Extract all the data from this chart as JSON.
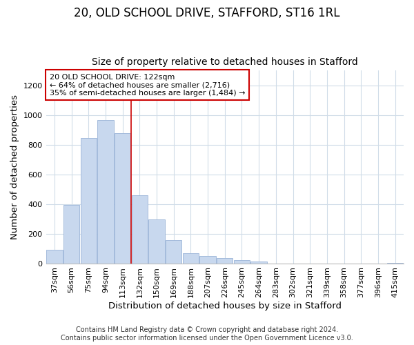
{
  "title1": "20, OLD SCHOOL DRIVE, STAFFORD, ST16 1RL",
  "title2": "Size of property relative to detached houses in Stafford",
  "xlabel": "Distribution of detached houses by size in Stafford",
  "ylabel": "Number of detached properties",
  "categories": [
    "37sqm",
    "56sqm",
    "75sqm",
    "94sqm",
    "113sqm",
    "132sqm",
    "150sqm",
    "169sqm",
    "188sqm",
    "207sqm",
    "226sqm",
    "245sqm",
    "264sqm",
    "283sqm",
    "302sqm",
    "321sqm",
    "339sqm",
    "358sqm",
    "377sqm",
    "396sqm",
    "415sqm"
  ],
  "values": [
    90,
    395,
    845,
    965,
    880,
    460,
    295,
    155,
    70,
    50,
    35,
    20,
    10,
    0,
    0,
    0,
    0,
    0,
    0,
    0,
    5
  ],
  "bar_color": "#c8d8ee",
  "bar_edge_color": "#9ab4d8",
  "vline_x_index": 4,
  "annotation_title": "20 OLD SCHOOL DRIVE: 122sqm",
  "annotation_line1": "← 64% of detached houses are smaller (2,716)",
  "annotation_line2": "35% of semi-detached houses are larger (1,484) →",
  "annotation_box_color": "#ffffff",
  "annotation_box_edge_color": "#cc0000",
  "vline_color": "#cc0000",
  "ylim": [
    0,
    1300
  ],
  "yticks": [
    0,
    200,
    400,
    600,
    800,
    1000,
    1200
  ],
  "footnote1": "Contains HM Land Registry data © Crown copyright and database right 2024.",
  "footnote2": "Contains public sector information licensed under the Open Government Licence v3.0.",
  "bg_color": "#ffffff",
  "plot_bg_color": "#ffffff",
  "grid_color": "#d0dce8",
  "title1_fontsize": 12,
  "title2_fontsize": 10,
  "tick_fontsize": 8,
  "label_fontsize": 9.5,
  "footnote_fontsize": 7
}
